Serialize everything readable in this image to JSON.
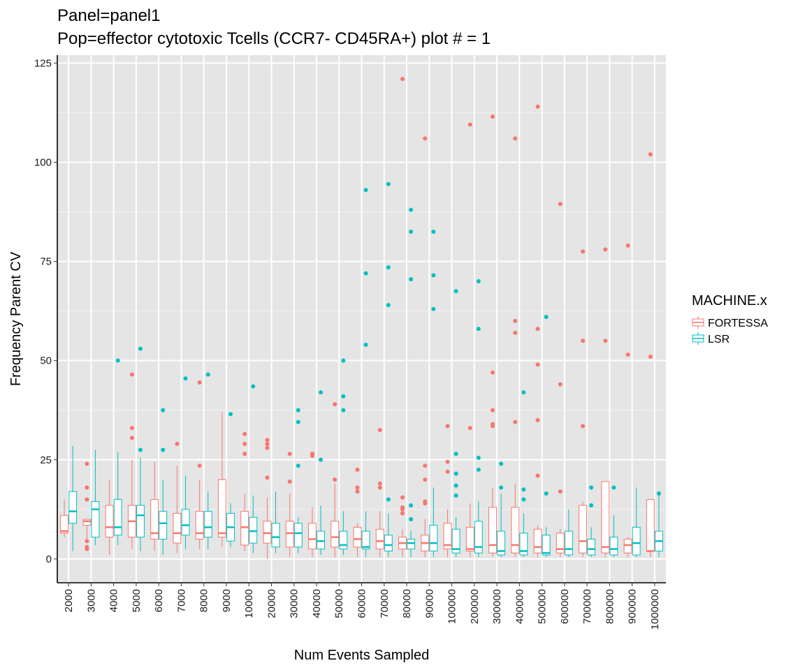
{
  "chart_data": {
    "type": "box",
    "title": "Panel=panel1",
    "subtitle": "Pop=effector cytotoxic Tcells  (CCR7-  CD45RA+) plot # = 1",
    "xlabel": "Num Events Sampled",
    "ylabel": "Frequency Parent CV",
    "ylim": [
      -6,
      127
    ],
    "yticks": [
      0,
      25,
      50,
      75,
      100,
      125
    ],
    "grid": true,
    "legend_title": "MACHINE.x",
    "legend_position": "right",
    "categories": [
      "2000",
      "3000",
      "4000",
      "5000",
      "6000",
      "7000",
      "8000",
      "9000",
      "10000",
      "20000",
      "30000",
      "40000",
      "50000",
      "60000",
      "70000",
      "80000",
      "90000",
      "100000",
      "200000",
      "300000",
      "400000",
      "500000",
      "600000",
      "700000",
      "800000",
      "900000",
      "1000000"
    ],
    "series": [
      {
        "name": "FORTESSA",
        "color": "#F8766D",
        "boxes": [
          {
            "q1": 6.5,
            "median": 7,
            "q3": 11,
            "lo": 5.5,
            "hi": 15,
            "out": []
          },
          {
            "q1": 8.5,
            "median": 9.5,
            "q3": 10,
            "lo": 4,
            "hi": 10,
            "out": [
              24,
              18,
              15,
              4.5,
              3,
              2.5
            ]
          },
          {
            "q1": 5.5,
            "median": 8,
            "q3": 13.5,
            "lo": 1,
            "hi": 20,
            "out": []
          },
          {
            "q1": 5.5,
            "median": 9.5,
            "q3": 13.5,
            "lo": 2.5,
            "hi": 25,
            "out": [
              46.5,
              33,
              30.5
            ]
          },
          {
            "q1": 5,
            "median": 6.5,
            "q3": 15,
            "lo": 2,
            "hi": 24.5,
            "out": []
          },
          {
            "q1": 4,
            "median": 6.5,
            "q3": 11.5,
            "lo": 1.5,
            "hi": 23.5,
            "out": [
              29
            ]
          },
          {
            "q1": 5,
            "median": 6.5,
            "q3": 12,
            "lo": 2.5,
            "hi": 20,
            "out": [
              44.5,
              23.5
            ]
          },
          {
            "q1": 5.5,
            "median": 6.5,
            "q3": 20,
            "lo": 3,
            "hi": 37,
            "out": []
          },
          {
            "q1": 3.5,
            "median": 8,
            "q3": 12,
            "lo": 2,
            "hi": 16.5,
            "out": [
              31.5,
              29,
              26.5
            ]
          },
          {
            "q1": 4,
            "median": 6.5,
            "q3": 9.5,
            "lo": 0,
            "hi": 15.5,
            "out": [
              30,
              29,
              28,
              20.5
            ]
          },
          {
            "q1": 3,
            "median": 6.5,
            "q3": 9.5,
            "lo": 0.5,
            "hi": 16.5,
            "out": [
              26.5,
              19.5
            ]
          },
          {
            "q1": 2.5,
            "median": 5,
            "q3": 9,
            "lo": 0.5,
            "hi": 13,
            "out": [
              26.5,
              26
            ]
          },
          {
            "q1": 3,
            "median": 5.5,
            "q3": 9.5,
            "lo": 0.5,
            "hi": 19,
            "out": [
              39,
              20
            ]
          },
          {
            "q1": 3,
            "median": 5,
            "q3": 8,
            "lo": 0.5,
            "hi": 9,
            "out": [
              22.5,
              18,
              17
            ]
          },
          {
            "q1": 2.5,
            "median": 4.5,
            "q3": 7.5,
            "lo": 0.5,
            "hi": 12,
            "out": [
              32.5,
              19,
              18
            ]
          },
          {
            "q1": 2.5,
            "median": 4,
            "q3": 5.5,
            "lo": 0.5,
            "hi": 7.5,
            "out": [
              121,
              15.5,
              13,
              12.5,
              11.5
            ]
          },
          {
            "q1": 2,
            "median": 4,
            "q3": 6,
            "lo": 0.5,
            "hi": 10,
            "out": [
              106,
              23.5,
              20,
              14.5,
              14
            ]
          },
          {
            "q1": 2.5,
            "median": 3.5,
            "q3": 9,
            "lo": 0.5,
            "hi": 12.5,
            "out": [
              33.5,
              24.5,
              22
            ]
          },
          {
            "q1": 2,
            "median": 2.5,
            "q3": 8,
            "lo": 0.5,
            "hi": 14,
            "out": [
              109.5,
              33
            ]
          },
          {
            "q1": 1.5,
            "median": 3.5,
            "q3": 13,
            "lo": 0.5,
            "hi": 18,
            "out": [
              111.5,
              47,
              37.5,
              34,
              33.5
            ]
          },
          {
            "q1": 1.5,
            "median": 3.5,
            "q3": 13,
            "lo": 0.5,
            "hi": 19,
            "out": [
              106,
              60,
              57,
              34.5
            ]
          },
          {
            "q1": 1.5,
            "median": 3,
            "q3": 7.5,
            "lo": 0.5,
            "hi": 8.5,
            "out": [
              114,
              58,
              49,
              35,
              21
            ]
          },
          {
            "q1": 1.5,
            "median": 2.5,
            "q3": 6.5,
            "lo": 0.5,
            "hi": 7.5,
            "out": [
              89.5,
              44,
              17
            ]
          },
          {
            "q1": 1.5,
            "median": 4.5,
            "q3": 13.5,
            "lo": 0.5,
            "hi": 14.5,
            "out": [
              77.5,
              55,
              33.5
            ]
          },
          {
            "q1": 1.5,
            "median": 3,
            "q3": 19.5,
            "lo": 0.5,
            "hi": 19.5,
            "out": [
              78,
              55
            ]
          },
          {
            "q1": 1.5,
            "median": 3.5,
            "q3": 5,
            "lo": 0.5,
            "hi": 5.5,
            "out": [
              79,
              51.5
            ]
          },
          {
            "q1": 2,
            "median": 2,
            "q3": 15,
            "lo": 0.5,
            "hi": 15,
            "out": [
              102,
              51
            ]
          }
        ]
      },
      {
        "name": "LSR",
        "color": "#00BFC4",
        "boxes": [
          {
            "q1": 9,
            "median": 12,
            "q3": 17,
            "lo": 2,
            "hi": 28.5,
            "out": []
          },
          {
            "q1": 5.5,
            "median": 12.5,
            "q3": 14.5,
            "lo": 3.5,
            "hi": 27.5,
            "out": []
          },
          {
            "q1": 6,
            "median": 8,
            "q3": 15,
            "lo": 3.5,
            "hi": 27,
            "out": [
              50
            ]
          },
          {
            "q1": 5.5,
            "median": 11,
            "q3": 13.5,
            "lo": 2,
            "hi": 25.5,
            "out": [
              53,
              27.5
            ]
          },
          {
            "q1": 5,
            "median": 9,
            "q3": 12,
            "lo": 1,
            "hi": 20,
            "out": [
              37.5,
              27.5
            ]
          },
          {
            "q1": 6,
            "median": 8.5,
            "q3": 12.5,
            "lo": 2.5,
            "hi": 21,
            "out": [
              45.5
            ]
          },
          {
            "q1": 5.5,
            "median": 8,
            "q3": 12,
            "lo": 2.5,
            "hi": 17,
            "out": [
              46.5
            ]
          },
          {
            "q1": 4.5,
            "median": 8,
            "q3": 11.5,
            "lo": 3,
            "hi": 14,
            "out": [
              36.5
            ]
          },
          {
            "q1": 4,
            "median": 7,
            "q3": 10.5,
            "lo": 1.5,
            "hi": 16,
            "out": [
              43.5
            ]
          },
          {
            "q1": 3,
            "median": 5.5,
            "q3": 9,
            "lo": 1.5,
            "hi": 17,
            "out": []
          },
          {
            "q1": 3,
            "median": 6.5,
            "q3": 9,
            "lo": 1.5,
            "hi": 10.5,
            "out": [
              37.5,
              34.5,
              23.5
            ]
          },
          {
            "q1": 2.5,
            "median": 4.5,
            "q3": 7,
            "lo": 1,
            "hi": 13.5,
            "out": [
              42,
              25
            ]
          },
          {
            "q1": 2.5,
            "median": 3.5,
            "q3": 7,
            "lo": 1,
            "hi": 12,
            "out": [
              50,
              41,
              37.5
            ]
          },
          {
            "q1": 2.5,
            "median": 3,
            "q3": 7,
            "lo": 0.5,
            "hi": 12,
            "out": [
              93,
              72,
              54
            ]
          },
          {
            "q1": 2,
            "median": 3.5,
            "q3": 6,
            "lo": 0.5,
            "hi": 11.5,
            "out": [
              94.5,
              73.5,
              64,
              15
            ]
          },
          {
            "q1": 2.5,
            "median": 4,
            "q3": 5,
            "lo": 0.5,
            "hi": 7,
            "out": [
              88,
              82.5,
              70.5,
              13.5,
              10
            ]
          },
          {
            "q1": 2,
            "median": 4,
            "q3": 8.5,
            "lo": 0.5,
            "hi": 18,
            "out": [
              82.5,
              71.5,
              63
            ]
          },
          {
            "q1": 1.5,
            "median": 2.5,
            "q3": 7.5,
            "lo": 0.5,
            "hi": 10.5,
            "out": [
              67.5,
              26.5,
              21.5,
              18.5,
              16
            ]
          },
          {
            "q1": 1.5,
            "median": 3,
            "q3": 9.5,
            "lo": 0.5,
            "hi": 14.5,
            "out": [
              70,
              58,
              25.5,
              22.5
            ]
          },
          {
            "q1": 1,
            "median": 2,
            "q3": 7,
            "lo": 0.5,
            "hi": 16.5,
            "out": [
              24,
              18
            ]
          },
          {
            "q1": 1,
            "median": 2,
            "q3": 6.5,
            "lo": 0.5,
            "hi": 11.5,
            "out": [
              42,
              17.5,
              15
            ]
          },
          {
            "q1": 1,
            "median": 1.5,
            "q3": 6,
            "lo": 0.5,
            "hi": 8,
            "out": [
              61,
              16.5
            ]
          },
          {
            "q1": 1,
            "median": 2.5,
            "q3": 7,
            "lo": 0.5,
            "hi": 12.5,
            "out": []
          },
          {
            "q1": 1,
            "median": 2.5,
            "q3": 5,
            "lo": 0.5,
            "hi": 8,
            "out": [
              18,
              13.5
            ]
          },
          {
            "q1": 1,
            "median": 2.5,
            "q3": 5.5,
            "lo": 0.5,
            "hi": 11,
            "out": [
              18
            ]
          },
          {
            "q1": 1,
            "median": 4,
            "q3": 8,
            "lo": 0.5,
            "hi": 18,
            "out": []
          },
          {
            "q1": 2,
            "median": 4.5,
            "q3": 7,
            "lo": 0.5,
            "hi": 16.5,
            "out": [
              16.5
            ]
          }
        ]
      }
    ]
  }
}
